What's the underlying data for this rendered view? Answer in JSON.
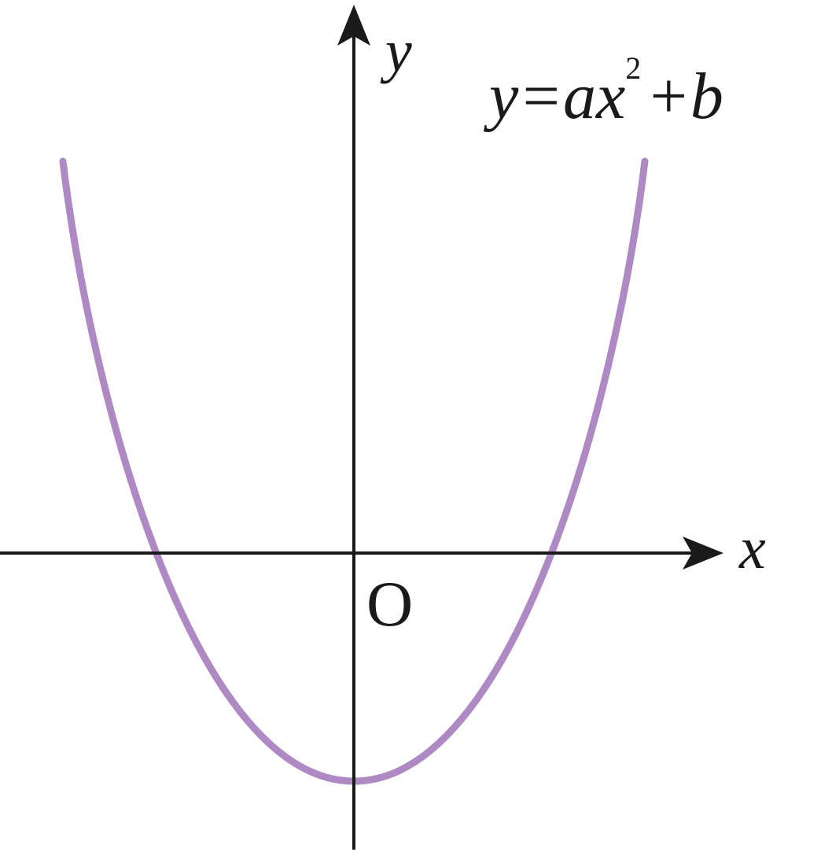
{
  "axes": {
    "y_label": "y",
    "x_label": "x",
    "origin_label": "O"
  },
  "equation": {
    "base": "y=ax",
    "exponent": "2",
    "tail": "+b"
  }
}
